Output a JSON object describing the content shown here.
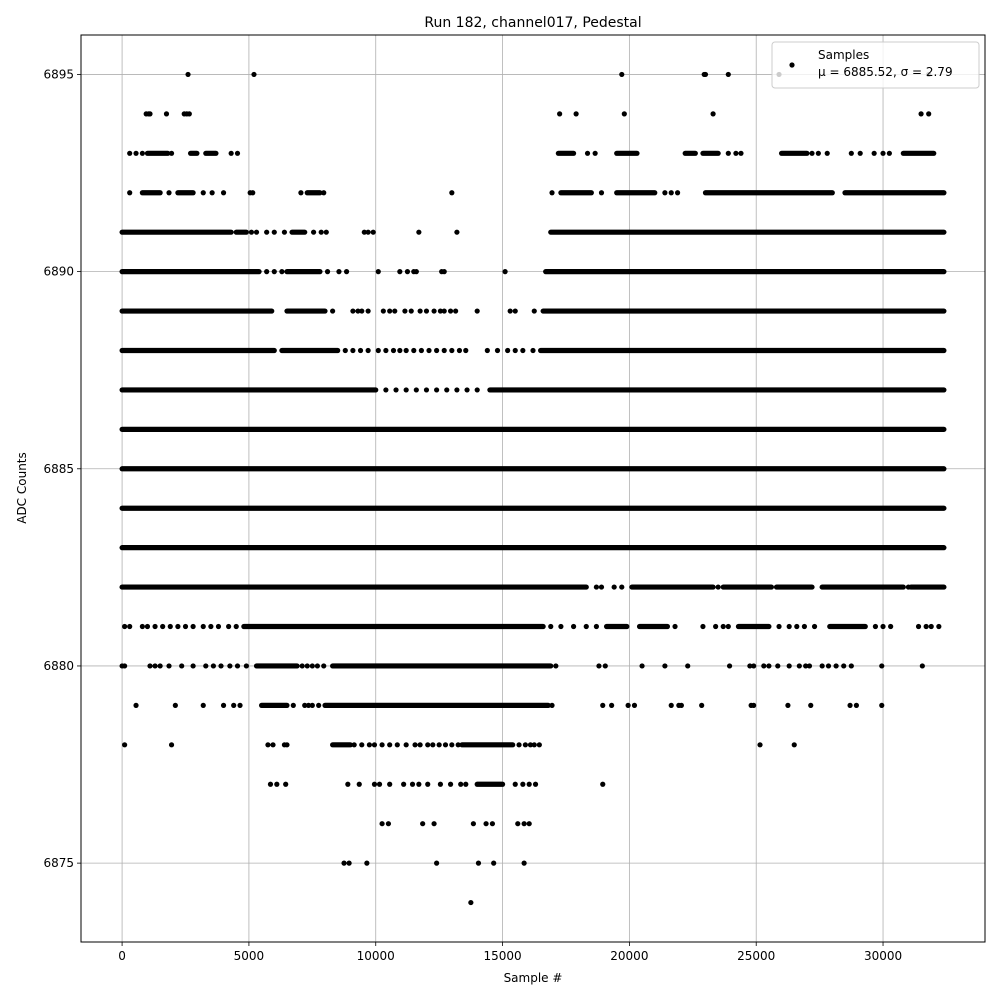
{
  "chart_data": {
    "type": "scatter",
    "title": "Run 182, channel017, Pedestal",
    "xlabel": "Sample #",
    "ylabel": "ADC Counts",
    "xlim": [
      -1620,
      34020
    ],
    "ylim": [
      6873,
      6896
    ],
    "xticks": [
      0,
      5000,
      10000,
      15000,
      20000,
      25000,
      30000
    ],
    "yticks": [
      6875,
      6880,
      6885,
      6890,
      6895
    ],
    "grid": true,
    "legend_position": "top-right",
    "marker_color": "#000000",
    "n_samples": 32400,
    "series": [
      {
        "name": "Samples",
        "stat_label": "μ = 6885.52, σ = 2.79",
        "levels": [
          {
            "y": 6895,
            "runs": [],
            "points": [
              2600,
              5200,
              19700,
              22950,
              23000,
              23900,
              25900,
              31800
            ]
          },
          {
            "y": 6894,
            "runs": [],
            "points": [
              950,
              1050,
              1100,
              1750,
              2450,
              2550,
              2650,
              17250,
              17900,
              19800,
              23300,
              31500,
              31800
            ]
          },
          {
            "y": 6893,
            "runs": [
              [
                1000,
                1800
              ],
              [
                2700,
                2950
              ],
              [
                3300,
                3700
              ],
              [
                17200,
                17800
              ],
              [
                19500,
                20300
              ],
              [
                22200,
                22600
              ],
              [
                22900,
                23500
              ],
              [
                26000,
                27000
              ],
              [
                30800,
                32000
              ]
            ],
            "points": [
              300,
              550,
              800,
              1950,
              4300,
              4550,
              18350,
              18650,
              23900,
              24200,
              24400,
              27200,
              27450,
              27800,
              28750,
              29100,
              29650,
              30000,
              30250
            ]
          },
          {
            "y": 6892,
            "runs": [
              [
                800,
                1500
              ],
              [
                2200,
                2800
              ],
              [
                7300,
                7800
              ],
              [
                17300,
                18500
              ],
              [
                19500,
                21000
              ],
              [
                23000,
                28000
              ],
              [
                28500,
                32400
              ]
            ],
            "points": [
              300,
              1850,
              3200,
              3550,
              4000,
              5050,
              5150,
              7050,
              7950,
              13000,
              16950,
              18900,
              21400,
              21650,
              21900
            ]
          },
          {
            "y": 6891,
            "runs": [
              [
                0,
                4300
              ],
              [
                4500,
                4900
              ],
              [
                6700,
                7200
              ],
              [
                16900,
                32400
              ]
            ],
            "points": [
              5100,
              5300,
              5700,
              6000,
              6400,
              7550,
              7850,
              8050,
              9550,
              9700,
              9900,
              11700,
              13200
            ]
          },
          {
            "y": 6890,
            "runs": [
              [
                0,
                5400
              ],
              [
                6500,
                7800
              ],
              [
                16700,
                32400
              ]
            ],
            "points": [
              5700,
              6000,
              6300,
              8100,
              8550,
              8850,
              10100,
              10950,
              11250,
              11500,
              11600,
              12600,
              12700,
              15100
            ]
          },
          {
            "y": 6889,
            "runs": [
              [
                0,
                5900
              ],
              [
                6500,
                8000
              ],
              [
                16600,
                32400
              ]
            ],
            "points": [
              8300,
              9100,
              9300,
              9450,
              9700,
              10300,
              10550,
              10750,
              11150,
              11400,
              11750,
              12000,
              12300,
              12550,
              12700,
              12950,
              13150,
              14000,
              15300,
              15500,
              16250
            ]
          },
          {
            "y": 6888,
            "runs": [
              [
                0,
                6000
              ],
              [
                6300,
                8500
              ],
              [
                16500,
                32400
              ]
            ],
            "points": [
              8800,
              9100,
              9400,
              9700,
              10100,
              10400,
              10700,
              10950,
              11200,
              11500,
              11800,
              12100,
              12400,
              12700,
              13000,
              13300,
              13550,
              14400,
              14800,
              15200,
              15500,
              15800,
              16200
            ]
          },
          {
            "y": 6887,
            "runs": [
              [
                0,
                10000
              ],
              [
                14500,
                32400
              ]
            ],
            "points": [
              10400,
              10800,
              11200,
              11600,
              12000,
              12400,
              12800,
              13200,
              13600,
              14000
            ]
          },
          {
            "y": 6886,
            "runs": [
              [
                0,
                32400
              ]
            ],
            "points": []
          },
          {
            "y": 6885,
            "runs": [
              [
                0,
                32400
              ]
            ],
            "points": []
          },
          {
            "y": 6884,
            "runs": [
              [
                0,
                32400
              ]
            ],
            "points": []
          },
          {
            "y": 6883,
            "runs": [
              [
                0,
                32400
              ]
            ],
            "points": []
          },
          {
            "y": 6882,
            "runs": [
              [
                0,
                18300
              ],
              [
                20100,
                23300
              ],
              [
                23700,
                25600
              ],
              [
                25800,
                27200
              ],
              [
                27600,
                30800
              ],
              [
                31100,
                32400
              ]
            ],
            "points": [
              18700,
              18900,
              19400,
              19700,
              23500,
              31000
            ]
          },
          {
            "y": 6881,
            "runs": [
              [
                4800,
                16600
              ],
              [
                19100,
                19900
              ],
              [
                20400,
                21500
              ],
              [
                24300,
                25500
              ],
              [
                27900,
                29300
              ]
            ],
            "points": [
              100,
              300,
              800,
              1000,
              1300,
              1600,
              1900,
              2200,
              2500,
              2800,
              3200,
              3500,
              3800,
              4200,
              4500,
              16900,
              17300,
              17800,
              18300,
              18700,
              21800,
              22900,
              23400,
              23700,
              23900,
              25900,
              26300,
              26600,
              26900,
              27300,
              29700,
              30000,
              30300,
              31400,
              31700,
              31900,
              32200
            ]
          },
          {
            "y": 6880,
            "runs": [
              [
                5300,
                6900
              ],
              [
                8300,
                16900
              ]
            ],
            "points": [
              0,
              100,
              1100,
              1300,
              1500,
              1850,
              2350,
              2800,
              3300,
              3600,
              3900,
              4250,
              4550,
              4900,
              7100,
              7300,
              7500,
              7700,
              7950,
              17100,
              18800,
              19050,
              20500,
              21400,
              22300,
              23950,
              24750,
              24900,
              25300,
              25500,
              25850,
              26300,
              26700,
              26950,
              27100,
              27600,
              27850,
              28150,
              28450,
              28750,
              29950,
              31550
            ]
          },
          {
            "y": 6879,
            "runs": [
              [
                5500,
                6500
              ],
              [
                8000,
                16800
              ]
            ],
            "points": [
              550,
              2100,
              3200,
              4000,
              4400,
              4650,
              6750,
              7200,
              7350,
              7500,
              7750,
              16950,
              18950,
              19300,
              19950,
              20200,
              21650,
              21950,
              22050,
              22850,
              24800,
              24900,
              26250,
              27150,
              28700,
              28950,
              29950
            ]
          },
          {
            "y": 6878,
            "runs": [
              [
                8300,
                9000
              ],
              [
                13400,
                15400
              ]
            ],
            "points": [
              100,
              1950,
              5750,
              5950,
              6400,
              6500,
              9150,
              9450,
              9750,
              9950,
              10250,
              10550,
              10850,
              11200,
              11550,
              11750,
              12050,
              12250,
              12500,
              12750,
              13000,
              13250,
              15650,
              15900,
              16100,
              16250,
              16450,
              25150,
              26500
            ]
          },
          {
            "y": 6877,
            "runs": [
              [
                14000,
                15000
              ]
            ],
            "points": [
              5850,
              6100,
              6450,
              8900,
              9350,
              9950,
              10150,
              10550,
              11100,
              11450,
              11700,
              12050,
              12550,
              12950,
              13350,
              13550,
              15500,
              15800,
              16050,
              16300,
              18950
            ]
          },
          {
            "y": 6876,
            "runs": [],
            "points": [
              10250,
              10500,
              11850,
              12300,
              13850,
              14350,
              14600,
              15600,
              15850,
              16050
            ]
          },
          {
            "y": 6875,
            "runs": [],
            "points": [
              8750,
              8950,
              9650,
              12400,
              14050,
              14650,
              15850
            ]
          },
          {
            "y": 6874,
            "runs": [],
            "points": [
              13750
            ]
          }
        ]
      }
    ]
  }
}
